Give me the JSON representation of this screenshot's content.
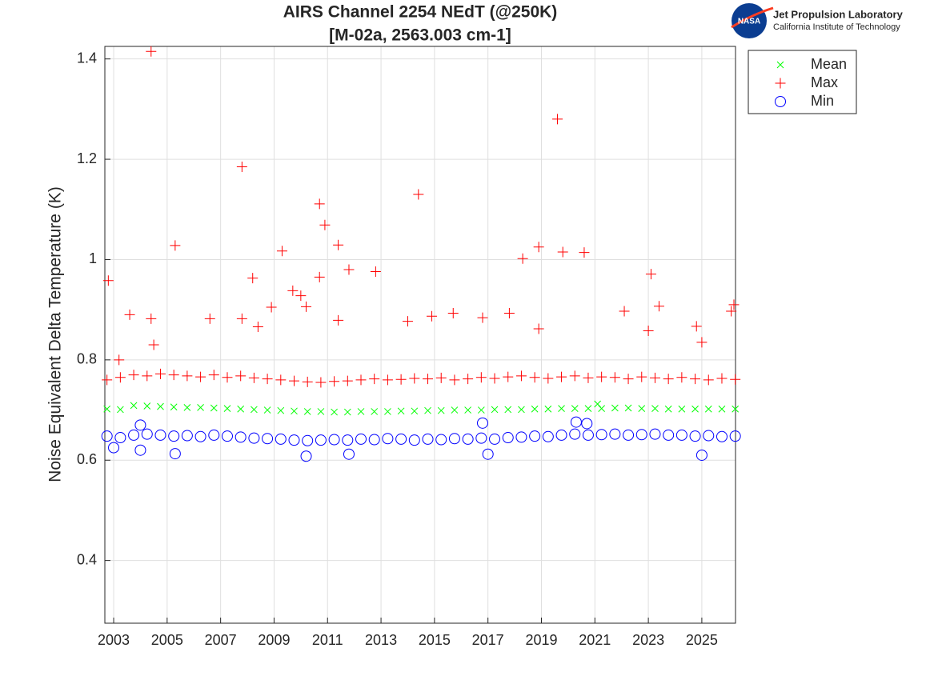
{
  "chart_data": {
    "type": "scatter",
    "title": "AIRS Channel 2254 NEdT (@250K)",
    "subtitle": "[M-02a, 2563.003 cm-1]",
    "y_label": "Noise Equivalent Delta Temperature (K)",
    "logo": {
      "mark": "NASA",
      "line1": "Jet Propulsion Laboratory",
      "line2": "California Institute of Technology"
    },
    "xlim": [
      2002.67,
      2026.26
    ],
    "ylim": [
      0.275,
      1.425
    ],
    "xticks": [
      2003,
      2005,
      2007,
      2009,
      2011,
      2013,
      2015,
      2017,
      2019,
      2021,
      2023,
      2025
    ],
    "yticks": [
      0.4,
      0.6,
      0.8,
      1,
      1.2,
      1.4
    ],
    "grid": true,
    "legend": "outside-top-right",
    "series": [
      {
        "name": "Mean",
        "color": "#00ff00",
        "marker": "x",
        "x": [
          2002.75,
          2003.25,
          2003.75,
          2004.25,
          2004.75,
          2005.25,
          2005.75,
          2006.25,
          2006.75,
          2007.25,
          2007.75,
          2008.25,
          2008.75,
          2009.25,
          2009.75,
          2010.25,
          2010.75,
          2011.25,
          2011.75,
          2012.25,
          2012.75,
          2013.25,
          2013.75,
          2014.25,
          2014.75,
          2015.25,
          2015.75,
          2016.25,
          2016.75,
          2017.25,
          2017.75,
          2018.25,
          2018.75,
          2019.25,
          2019.75,
          2020.25,
          2020.75,
          2021.25,
          2021.75,
          2022.25,
          2022.75,
          2023.25,
          2023.75,
          2024.25,
          2024.75,
          2025.25,
          2025.75,
          2026.25,
          2021.1
        ],
        "values": [
          0.702,
          0.701,
          0.709,
          0.708,
          0.707,
          0.706,
          0.705,
          0.705,
          0.704,
          0.703,
          0.702,
          0.701,
          0.7,
          0.699,
          0.698,
          0.697,
          0.697,
          0.696,
          0.696,
          0.697,
          0.697,
          0.697,
          0.698,
          0.698,
          0.699,
          0.699,
          0.7,
          0.7,
          0.7,
          0.701,
          0.701,
          0.701,
          0.702,
          0.702,
          0.703,
          0.703,
          0.703,
          0.703,
          0.704,
          0.704,
          0.703,
          0.703,
          0.702,
          0.702,
          0.702,
          0.702,
          0.702,
          0.702,
          0.712
        ]
      },
      {
        "name": "Max",
        "color": "#ff0000",
        "marker": "+",
        "x": [
          2002.75,
          2003.25,
          2003.75,
          2004.25,
          2004.75,
          2005.25,
          2005.75,
          2006.25,
          2006.75,
          2007.25,
          2007.75,
          2008.25,
          2008.75,
          2009.25,
          2009.75,
          2010.25,
          2010.75,
          2011.25,
          2011.75,
          2012.25,
          2012.75,
          2013.25,
          2013.75,
          2014.25,
          2014.75,
          2015.25,
          2015.75,
          2016.25,
          2016.75,
          2017.25,
          2017.75,
          2018.25,
          2018.75,
          2019.25,
          2019.75,
          2020.25,
          2020.75,
          2021.25,
          2021.75,
          2022.25,
          2022.75,
          2023.25,
          2023.75,
          2024.25,
          2024.75,
          2025.25,
          2025.75,
          2026.25,
          2002.8,
          2003.2,
          2003.6,
          2004.4,
          2004.4,
          2004.5,
          2005.3,
          2006.6,
          2007.8,
          2007.8,
          2008.2,
          2008.4,
          2008.9,
          2009.3,
          2009.7,
          2010.0,
          2010.2,
          2010.7,
          2010.7,
          2010.9,
          2011.4,
          2011.4,
          2011.8,
          2012.8,
          2014.0,
          2014.4,
          2014.9,
          2015.7,
          2016.8,
          2017.8,
          2018.3,
          2018.9,
          2018.9,
          2019.6,
          2019.8,
          2020.6,
          2022.1,
          2023.1,
          2023.4,
          2023.0,
          2024.8,
          2025.0,
          2026.1,
          2026.2
        ],
        "values": [
          0.76,
          0.765,
          0.77,
          0.768,
          0.772,
          0.77,
          0.768,
          0.766,
          0.77,
          0.765,
          0.768,
          0.764,
          0.762,
          0.76,
          0.758,
          0.756,
          0.755,
          0.757,
          0.758,
          0.76,
          0.762,
          0.76,
          0.761,
          0.763,
          0.762,
          0.764,
          0.76,
          0.762,
          0.765,
          0.763,
          0.766,
          0.768,
          0.765,
          0.763,
          0.766,
          0.768,
          0.764,
          0.766,
          0.765,
          0.762,
          0.766,
          0.764,
          0.762,
          0.765,
          0.762,
          0.76,
          0.763,
          0.761,
          0.958,
          0.8,
          0.89,
          1.415,
          0.882,
          0.83,
          1.028,
          0.882,
          1.185,
          0.882,
          0.963,
          0.866,
          0.905,
          1.017,
          0.938,
          0.928,
          0.906,
          1.111,
          0.965,
          1.069,
          1.029,
          0.879,
          0.98,
          0.976,
          0.877,
          1.13,
          0.887,
          0.893,
          0.884,
          0.893,
          1.002,
          1.025,
          0.862,
          1.28,
          1.015,
          1.014,
          0.897,
          0.971,
          0.907,
          0.858,
          0.867,
          0.835,
          0.897,
          0.91
        ]
      },
      {
        "name": "Min",
        "color": "#0000ff",
        "marker": "o",
        "x": [
          2002.75,
          2003.25,
          2003.75,
          2004.25,
          2004.75,
          2005.25,
          2005.75,
          2006.25,
          2006.75,
          2007.25,
          2007.75,
          2008.25,
          2008.75,
          2009.25,
          2009.75,
          2010.25,
          2010.75,
          2011.25,
          2011.75,
          2012.25,
          2012.75,
          2013.25,
          2013.75,
          2014.25,
          2014.75,
          2015.25,
          2015.75,
          2016.25,
          2016.75,
          2017.25,
          2017.75,
          2018.25,
          2018.75,
          2019.25,
          2019.75,
          2020.25,
          2020.75,
          2021.25,
          2021.75,
          2022.25,
          2022.75,
          2023.25,
          2023.75,
          2024.25,
          2024.75,
          2025.25,
          2025.75,
          2026.25,
          2003.0,
          2004.0,
          2005.3,
          2010.2,
          2011.8,
          2017.0,
          2025.0,
          2016.8,
          2020.3,
          2020.7,
          2004.0
        ],
        "values": [
          0.648,
          0.645,
          0.65,
          0.652,
          0.65,
          0.648,
          0.649,
          0.647,
          0.65,
          0.648,
          0.646,
          0.644,
          0.643,
          0.642,
          0.64,
          0.639,
          0.64,
          0.641,
          0.64,
          0.642,
          0.641,
          0.643,
          0.642,
          0.64,
          0.642,
          0.641,
          0.643,
          0.642,
          0.644,
          0.642,
          0.645,
          0.646,
          0.648,
          0.647,
          0.65,
          0.652,
          0.65,
          0.651,
          0.652,
          0.65,
          0.651,
          0.652,
          0.65,
          0.65,
          0.648,
          0.649,
          0.647,
          0.648,
          0.625,
          0.62,
          0.613,
          0.608,
          0.612,
          0.612,
          0.61,
          0.674,
          0.676,
          0.673,
          0.67
        ]
      }
    ]
  }
}
